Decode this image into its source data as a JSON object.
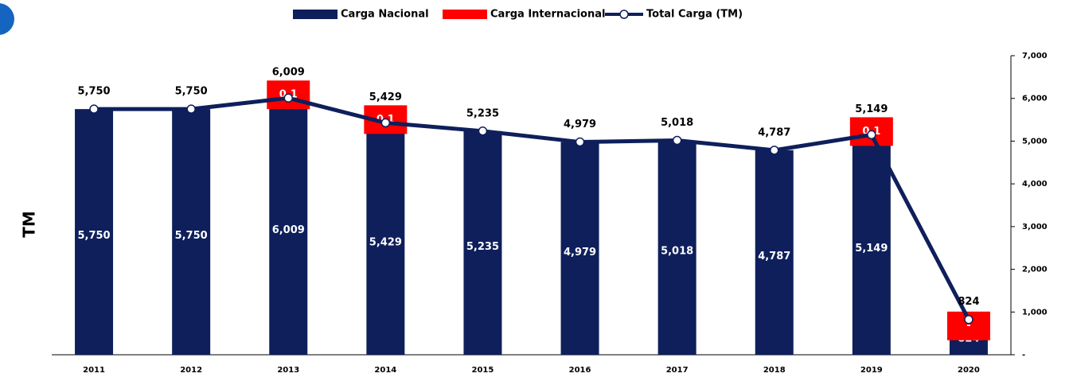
{
  "chart_data": {
    "type": "bar-line",
    "y_label": "TM",
    "categories": [
      "2011",
      "2012",
      "2013",
      "2014",
      "2015",
      "2016",
      "2017",
      "2018",
      "2019",
      "2020"
    ],
    "series": [
      {
        "name": "Carga Nacional",
        "color": "#0e1f5b",
        "kind": "bar",
        "values": [
          5750,
          5750,
          6009,
          5429,
          5235,
          4979,
          5018,
          4787,
          5149,
          824
        ],
        "value_labels": [
          "5,750",
          "5,750",
          "6,009",
          "5,429",
          "5,235",
          "4,979",
          "5,018",
          "4,787",
          "5,149",
          "824"
        ]
      },
      {
        "name": "Carga Internacional",
        "color": "#ff0000",
        "kind": "bar",
        "values": [
          null,
          null,
          0.1,
          0.1,
          null,
          null,
          null,
          null,
          0.1,
          0
        ],
        "value_labels": [
          null,
          null,
          "0.1",
          "0.1",
          null,
          null,
          null,
          null,
          "0.1",
          "-"
        ]
      },
      {
        "name": "Total Carga (TM)",
        "color": "#0e1f5b",
        "kind": "line",
        "values": [
          5750,
          5750,
          6009,
          5429,
          5235,
          4979,
          5018,
          4787,
          5149,
          824
        ],
        "value_labels": [
          "5,750",
          "5,750",
          "6,009",
          "5,429",
          "5,235",
          "4,979",
          "5,018",
          "4,787",
          "5,149",
          "824"
        ]
      }
    ],
    "ylim": [
      0,
      7000
    ],
    "yticks": [
      {
        "value": 0,
        "label": "-"
      },
      {
        "value": 1000,
        "label": "1,000"
      },
      {
        "value": 2000,
        "label": "2,000"
      },
      {
        "value": 3000,
        "label": "3,000"
      },
      {
        "value": 4000,
        "label": "4,000"
      },
      {
        "value": 5000,
        "label": "5,000"
      },
      {
        "value": 6000,
        "label": "6,000"
      },
      {
        "value": 7000,
        "label": "7,000"
      }
    ],
    "y_axis_side": "right",
    "grid": false
  }
}
